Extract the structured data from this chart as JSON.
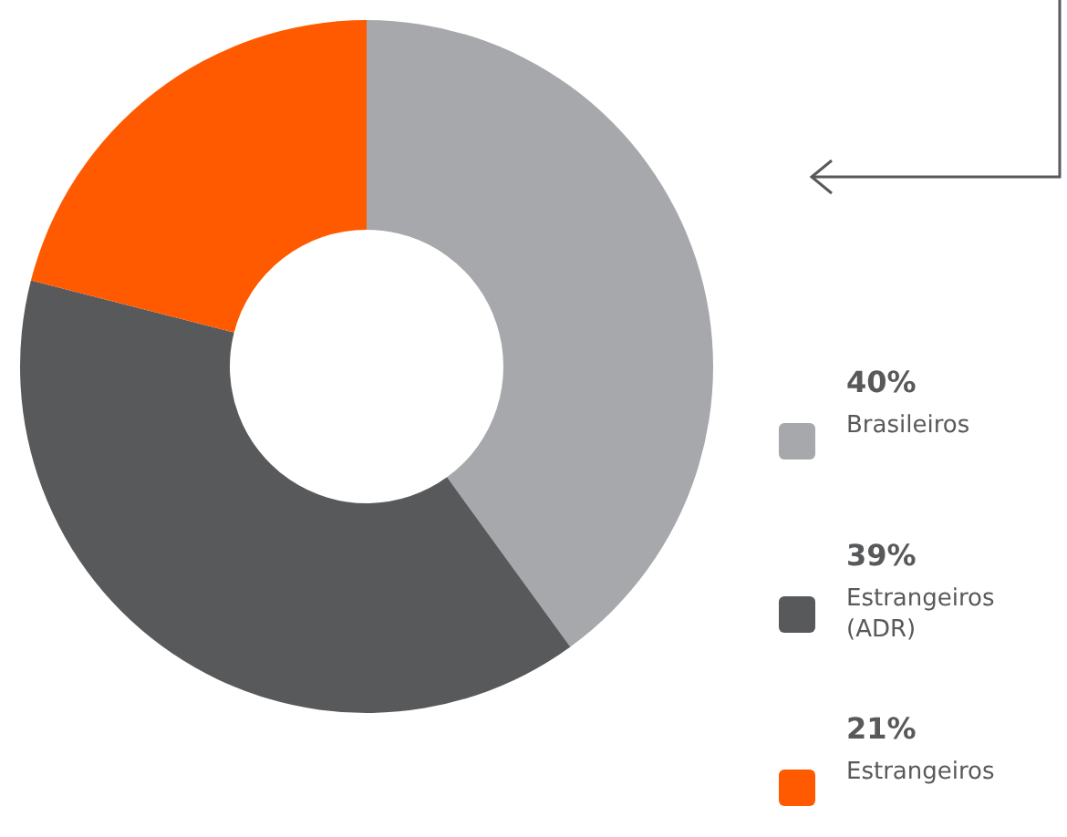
{
  "chart_data": {
    "type": "donut",
    "categories": [
      "Brasileiros",
      "Estrangeiros (ADR)",
      "Estrangeiros"
    ],
    "values": [
      40,
      39,
      21
    ],
    "colors": [
      "#a7a8ab",
      "#58595b",
      "#ff5a00"
    ],
    "value_labels": [
      "40%",
      "39%",
      "21%"
    ],
    "legend": "right"
  }
}
